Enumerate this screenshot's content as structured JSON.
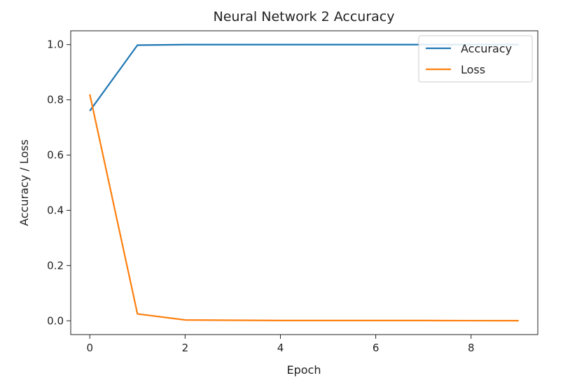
{
  "chart_data": {
    "type": "line",
    "title": "Neural Network 2 Accuracy",
    "xlabel": "Epoch",
    "ylabel": "Accuracy / Loss",
    "xlim": [
      -0.4,
      9.4
    ],
    "ylim": [
      -0.05,
      1.05
    ],
    "xticks": [
      0,
      2,
      4,
      6,
      8
    ],
    "xtick_labels": [
      "0",
      "2",
      "4",
      "6",
      "8"
    ],
    "yticks": [
      0.0,
      0.2,
      0.4,
      0.6,
      0.8,
      1.0
    ],
    "ytick_labels": [
      "0.0",
      "0.2",
      "0.4",
      "0.6",
      "0.8",
      "1.0"
    ],
    "grid": false,
    "legend_position": "top-right",
    "x": [
      0,
      1,
      2,
      3,
      4,
      5,
      6,
      7,
      8,
      9
    ],
    "series": [
      {
        "name": "Accuracy",
        "color": "#1f77b4",
        "values": [
          0.76,
          0.998,
          1.0,
          1.0,
          1.0,
          1.0,
          1.0,
          1.0,
          1.0,
          1.0
        ]
      },
      {
        "name": "Loss",
        "color": "#ff7f0e",
        "values": [
          0.82,
          0.025,
          0.003,
          0.002,
          0.001,
          0.001,
          0.001,
          0.001,
          0.0005,
          0.0003
        ]
      }
    ]
  }
}
